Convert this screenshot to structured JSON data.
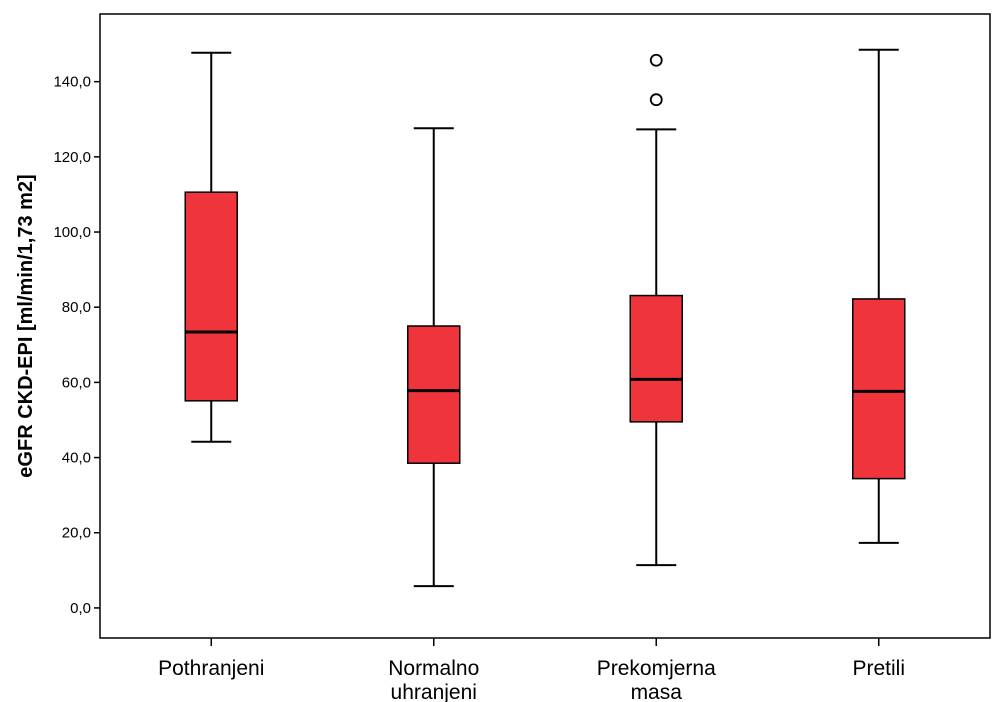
{
  "chart_data": {
    "type": "boxplot",
    "title": "",
    "xlabel": "",
    "ylabel": "eGFR CKD-EPI [ml/min/1,73 m2]",
    "ylim": [
      -8,
      158
    ],
    "yticks": [
      0,
      20,
      40,
      60,
      80,
      100,
      120,
      140
    ],
    "ytick_labels": [
      "0,0",
      "20,0",
      "40,0",
      "60,0",
      "80,0",
      "100,0",
      "120,0",
      "140,0"
    ],
    "grid": false,
    "box_color": "#f0343b",
    "categories": [
      {
        "label_lines": [
          "Pothranjeni"
        ],
        "min": 44.2,
        "q1": 55.1,
        "median": 73.4,
        "q3": 110.6,
        "max": 147.7,
        "outliers": []
      },
      {
        "label_lines": [
          "Normalno",
          "uhranjeni"
        ],
        "min": 5.8,
        "q1": 38.5,
        "median": 57.8,
        "q3": 75.0,
        "max": 127.6,
        "outliers": []
      },
      {
        "label_lines": [
          "Prekomjerna",
          "masa"
        ],
        "min": 11.4,
        "q1": 49.5,
        "median": 60.8,
        "q3": 83.1,
        "max": 127.3,
        "outliers": [
          135.2,
          145.7
        ]
      },
      {
        "label_lines": [
          "Pretili"
        ],
        "min": 17.3,
        "q1": 34.4,
        "median": 57.6,
        "q3": 82.2,
        "max": 148.5,
        "outliers": []
      }
    ]
  }
}
